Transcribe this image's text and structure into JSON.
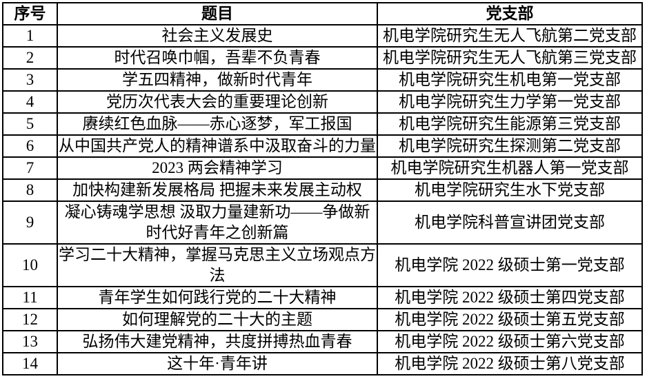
{
  "colors": {
    "background": "#ffffff",
    "border": "#000000",
    "text": "#000000"
  },
  "table": {
    "headers": {
      "no": "序号",
      "title": "题目",
      "branch": "党支部"
    },
    "rows": [
      {
        "no": "1",
        "title": "社会主义发展史",
        "branch": "机电学院研究生无人飞航第二党支部"
      },
      {
        "no": "2",
        "title": "时代召唤巾帼，吾辈不负青春",
        "branch": "机电学院研究生无人飞航第三党支部"
      },
      {
        "no": "3",
        "title": "学五四精神，做新时代青年",
        "branch": "机电学院研究生机电第一党支部"
      },
      {
        "no": "4",
        "title": "党历次代表大会的重要理论创新",
        "branch": "机电学院研究生力学第一党支部"
      },
      {
        "no": "5",
        "title": "赓续红色血脉——赤心逐梦，军工报国",
        "branch": "机电学院研究生能源第三党支部"
      },
      {
        "no": "6",
        "title": "从中国共产党人的精神谱系中汲取奋斗的力量",
        "branch": "机电学院研究生探测第二党支部"
      },
      {
        "no": "7",
        "title": "2023 两会精神学习",
        "branch": "机电学院研究生机器人第一党支部"
      },
      {
        "no": "8",
        "title": "加快构建新发展格局 把握未来发展主动权",
        "branch": "机电学院研究生水下党支部"
      },
      {
        "no": "9",
        "title": "凝心铸魂学思想 汲取力量建新功——争做新时代好青年之创新篇",
        "branch": "机电学院科普宣讲团党支部"
      },
      {
        "no": "10",
        "title": "学习二十大精神，掌握马克思主义立场观点方法",
        "branch": "机电学院 2022 级硕士第一党支部"
      },
      {
        "no": "11",
        "title": "青年学生如何践行党的二十大精神",
        "branch": "机电学院 2022 级硕士第四党支部"
      },
      {
        "no": "12",
        "title": "如何理解党的二十大的主题",
        "branch": "机电学院 2022 级硕士第五党支部"
      },
      {
        "no": "13",
        "title": "弘扬伟大建党精神，共度拼搏热血青春",
        "branch": "机电学院 2022 级硕士第六党支部"
      },
      {
        "no": "14",
        "title": "这十年·青年讲",
        "branch": "机电学院 2022 级硕士第八党支部"
      }
    ]
  }
}
